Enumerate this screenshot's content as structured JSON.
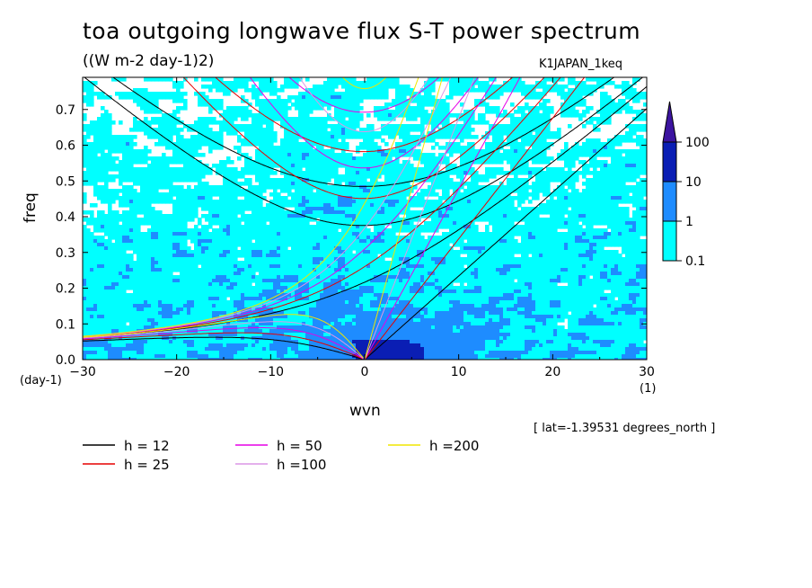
{
  "chart_data": {
    "type": "heatmap",
    "title": "toa outgoing longwave flux S-T power spectrum",
    "subtitle": "((W m-2 day-1)2)",
    "dataset_label": "K1JAPAN_1keq",
    "xlabel": "wvn",
    "ylabel": "freq",
    "x_unit": "(1)",
    "y_unit": "(day-1)",
    "annotation": "[ lat=-1.39531 degrees_north ]",
    "xlim": [
      -30,
      30
    ],
    "ylim": [
      0.0,
      0.79
    ],
    "x_ticks": [
      "-30",
      "-20",
      "-10",
      "0",
      "10",
      "20",
      "30"
    ],
    "x_tick_values": [
      -30,
      -20,
      -10,
      0,
      10,
      20,
      30
    ],
    "y_ticks": [
      "0.0",
      "0.1",
      "0.2",
      "0.3",
      "0.4",
      "0.5",
      "0.6",
      "0.7"
    ],
    "y_tick_values": [
      0.0,
      0.1,
      0.2,
      0.3,
      0.4,
      0.5,
      0.6,
      0.7
    ],
    "colorbar": {
      "levels": [
        "0.1",
        "1",
        "10",
        "100"
      ],
      "level_values": [
        0.1,
        1,
        10,
        100
      ],
      "colors": [
        "#00ffff",
        "#1e8cff",
        "#0a1eb4",
        "#3c14a0"
      ]
    },
    "dispersion_curves": [
      {
        "label": "h = 12",
        "h": 12,
        "color": "#000000"
      },
      {
        "label": "h = 25",
        "h": 25,
        "color": "#e60000"
      },
      {
        "label": "h = 50",
        "h": 50,
        "color": "#e600e6"
      },
      {
        "label": "h =100",
        "h": 100,
        "color": "#dc96e6"
      },
      {
        "label": "h =200",
        "h": 200,
        "color": "#f0e600"
      }
    ]
  }
}
